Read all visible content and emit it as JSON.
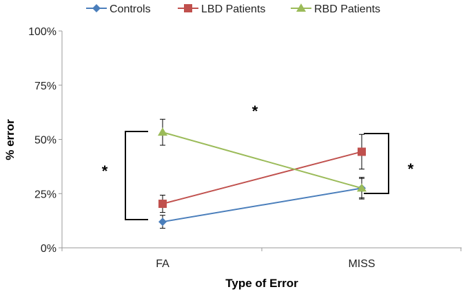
{
  "chart_data": {
    "type": "line",
    "title": "",
    "xlabel": "Type of Error",
    "ylabel": "% error",
    "categories": [
      "FA",
      "MISS"
    ],
    "ylim": [
      0,
      100
    ],
    "yticks": [
      0,
      25,
      50,
      75,
      100
    ],
    "ytick_labels": [
      "0%",
      "25%",
      "50%",
      "75%",
      "100%"
    ],
    "grid": false,
    "legend_position": "top",
    "series": [
      {
        "name": "Controls",
        "color": "#4a7ebb",
        "marker": "diamond",
        "values": [
          12,
          27.5
        ],
        "errors": [
          3,
          5
        ]
      },
      {
        "name": "LBD Patients",
        "color": "#c0504d",
        "marker": "square",
        "values": [
          20.3,
          44.3
        ],
        "errors": [
          4,
          8
        ]
      },
      {
        "name": "RBD Patients",
        "color": "#9bbb59",
        "marker": "triangle",
        "values": [
          53.3,
          27.5
        ],
        "errors": [
          6,
          4.5
        ]
      }
    ],
    "annotations": [
      {
        "text": "*",
        "meaning": "FA group difference"
      },
      {
        "text": "*",
        "meaning": "interaction"
      },
      {
        "text": "*",
        "meaning": "MISS group difference"
      }
    ]
  }
}
